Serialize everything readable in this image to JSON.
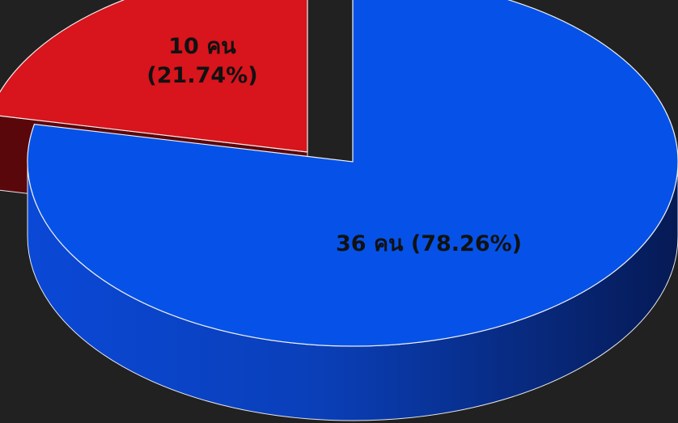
{
  "chart_data": {
    "type": "pie",
    "style": "3d-exploded",
    "values": [
      36,
      10
    ],
    "slices": [
      {
        "value": 36,
        "percent": 78.26,
        "label": "36 คน (78.26%)",
        "label_lines": [
          "36 คน (78.26%)"
        ],
        "color": "#0652E8",
        "side_color": "#0A3FB8"
      },
      {
        "value": 10,
        "percent": 21.74,
        "label": "10 คน (21.74%)",
        "label_lines": [
          "10 คน",
          "(21.74%)"
        ],
        "color": "#D8141C",
        "side_color": "#5A070C"
      }
    ],
    "background": "#212121",
    "legend": "none"
  }
}
